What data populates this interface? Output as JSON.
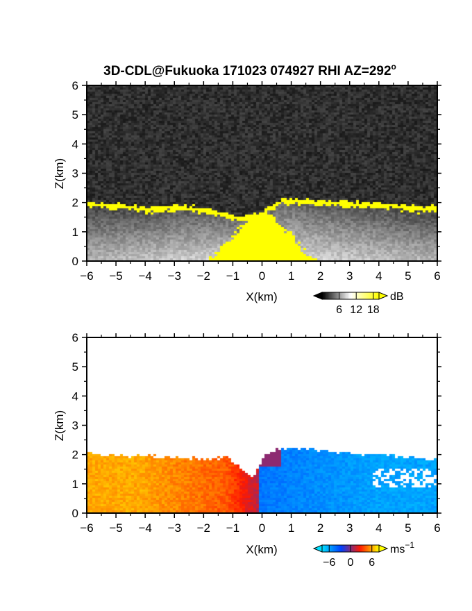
{
  "figure": {
    "title": "3D-CDL@Fukuoka 171023 074927 RHI AZ=292",
    "title_superscript": "o"
  },
  "chart_data": [
    {
      "type": "heatmap",
      "panel": "reflectivity",
      "title": "3D-CDL@Fukuoka 171023 074927 RHI AZ=292°",
      "xlabel": "X(km)",
      "ylabel": "Z(km)",
      "xlim": [
        -6,
        6
      ],
      "ylim": [
        0,
        6
      ],
      "x_ticks": [
        -6,
        -5,
        -4,
        -3,
        -2,
        -1,
        0,
        1,
        2,
        3,
        4,
        5,
        6
      ],
      "y_ticks": [
        0,
        1,
        2,
        3,
        4,
        5,
        6
      ],
      "colorbar": {
        "unit": "dB",
        "ticks": [
          6,
          12,
          18
        ],
        "range": [
          0,
          20
        ],
        "colors": [
          "#000000",
          "#ffffff",
          "#ffff00"
        ]
      },
      "background_color": "#2e2e2e",
      "features": {
        "layer_top_km": [
          [
            -6,
            2.02
          ],
          [
            -5,
            1.95
          ],
          [
            -4,
            1.85
          ],
          [
            -3,
            1.9
          ],
          [
            -2.3,
            1.85
          ],
          [
            -1.3,
            1.7
          ],
          [
            -0.8,
            1.5
          ],
          [
            0,
            1.7
          ],
          [
            0.8,
            2.15
          ],
          [
            1.5,
            2.1
          ],
          [
            2.5,
            2.05
          ],
          [
            3.5,
            2.0
          ],
          [
            4.5,
            1.95
          ],
          [
            5.5,
            1.85
          ],
          [
            6,
            1.9
          ]
        ],
        "near_field_plume_km": {
          "x_center": 0,
          "half_width": 1.8,
          "top": 1.6
        }
      }
    },
    {
      "type": "heatmap",
      "panel": "doppler_velocity",
      "xlabel": "X(km)",
      "ylabel": "Z(km)",
      "xlim": [
        -6,
        6
      ],
      "ylim": [
        0,
        6
      ],
      "x_ticks": [
        -6,
        -5,
        -4,
        -3,
        -2,
        -1,
        0,
        1,
        2,
        3,
        4,
        5,
        6
      ],
      "y_ticks": [
        0,
        1,
        2,
        3,
        4,
        5,
        6
      ],
      "colorbar": {
        "unit": "ms",
        "unit_superscript": "−1",
        "ticks": [
          -6,
          0,
          6
        ],
        "range": [
          -8,
          8
        ],
        "colors": [
          "#00e0ff",
          "#0040ff",
          "#ff1a00",
          "#ffff00"
        ]
      },
      "features": {
        "layer_top_km": [
          [
            -6,
            2.05
          ],
          [
            -5,
            1.95
          ],
          [
            -4,
            1.95
          ],
          [
            -3,
            1.9
          ],
          [
            -2,
            1.85
          ],
          [
            -1.2,
            1.9
          ],
          [
            -0.3,
            1.2
          ],
          [
            0.1,
            2.0
          ],
          [
            0.8,
            2.25
          ],
          [
            1.5,
            2.2
          ],
          [
            2.5,
            2.1
          ],
          [
            3.5,
            2.0
          ],
          [
            4.5,
            1.95
          ],
          [
            5.5,
            1.85
          ],
          [
            6,
            1.8
          ]
        ],
        "negative_side": "x > 0",
        "positive_side": "x < 0"
      }
    }
  ]
}
